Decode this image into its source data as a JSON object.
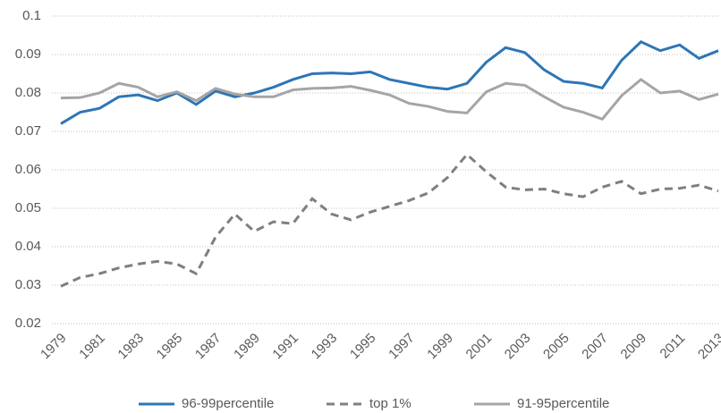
{
  "chart_data": {
    "type": "line",
    "x": [
      1979,
      1980,
      1981,
      1982,
      1983,
      1984,
      1985,
      1986,
      1987,
      1988,
      1989,
      1990,
      1991,
      1992,
      1993,
      1994,
      1995,
      1996,
      1997,
      1998,
      1999,
      2000,
      2001,
      2002,
      2003,
      2004,
      2005,
      2006,
      2007,
      2008,
      2009,
      2010,
      2011,
      2012,
      2013
    ],
    "xlim": [
      1979,
      2013
    ],
    "xticks": [
      1979,
      1981,
      1983,
      1985,
      1987,
      1989,
      1991,
      1993,
      1995,
      1997,
      1999,
      2001,
      2003,
      2005,
      2007,
      2009,
      2011,
      2013
    ],
    "ylim": [
      0.02,
      0.1
    ],
    "yticks": [
      0.02,
      0.03,
      0.04,
      0.05,
      0.06,
      0.07,
      0.08,
      0.09,
      0.1
    ],
    "grid": true,
    "legend": "bottom",
    "series": [
      {
        "name": "96-99percentile",
        "color": "#2e75b6",
        "line_style": "solid",
        "values": [
          0.072,
          0.075,
          0.076,
          0.079,
          0.0795,
          0.078,
          0.08,
          0.077,
          0.0805,
          0.079,
          0.08,
          0.0815,
          0.0835,
          0.085,
          0.0852,
          0.085,
          0.0855,
          0.0835,
          0.0825,
          0.0815,
          0.081,
          0.0825,
          0.088,
          0.0918,
          0.0905,
          0.086,
          0.083,
          0.0825,
          0.0813,
          0.0885,
          0.0933,
          0.091,
          0.0925,
          0.089,
          0.091
        ]
      },
      {
        "name": "top 1%",
        "color": "#7f7f7f",
        "line_style": "dashed",
        "values": [
          0.0297,
          0.032,
          0.033,
          0.0345,
          0.0355,
          0.0362,
          0.0355,
          0.033,
          0.0425,
          0.0485,
          0.044,
          0.0465,
          0.046,
          0.0525,
          0.0485,
          0.047,
          0.049,
          0.0505,
          0.052,
          0.054,
          0.058,
          0.064,
          0.0595,
          0.0555,
          0.0548,
          0.055,
          0.0538,
          0.053,
          0.0555,
          0.057,
          0.0538,
          0.055,
          0.0552,
          0.056,
          0.0545
        ]
      },
      {
        "name": "91-95percentile",
        "color": "#a5a5a5",
        "line_style": "solid",
        "values": [
          0.0787,
          0.0788,
          0.08,
          0.0825,
          0.0815,
          0.079,
          0.0803,
          0.078,
          0.0812,
          0.0797,
          0.079,
          0.079,
          0.0808,
          0.0812,
          0.0813,
          0.0817,
          0.0807,
          0.0795,
          0.0773,
          0.0765,
          0.0752,
          0.0748,
          0.0803,
          0.0825,
          0.082,
          0.079,
          0.0763,
          0.075,
          0.0732,
          0.0793,
          0.0835,
          0.08,
          0.0805,
          0.0783,
          0.0797
        ]
      }
    ]
  }
}
